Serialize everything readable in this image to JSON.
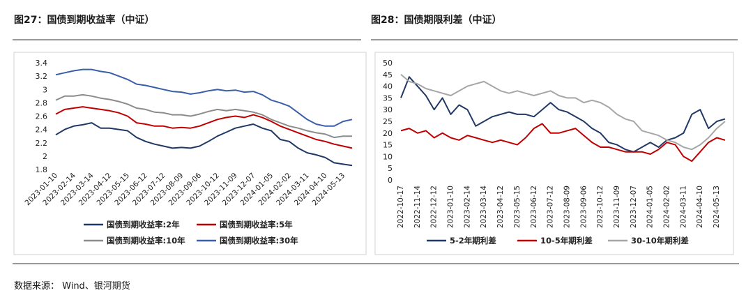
{
  "chart_data": [
    {
      "type": "line",
      "title": "图27：国债到期收益率（中证）",
      "categories": [
        "2023-01-10",
        null,
        "2023-02-14",
        null,
        "2023-03-14",
        null,
        "2023-04-12",
        null,
        "2023-05-15",
        null,
        "2023-06-12",
        null,
        "2023-07-12",
        null,
        "2023-08-09",
        null,
        "2023-09-06",
        null,
        "2023-10-12",
        null,
        "2023-11-09",
        null,
        "2023-12-07",
        null,
        "2024-01-05",
        null,
        "2024-02-02",
        null,
        "2024-03-11",
        null,
        "2024-04-10",
        null,
        "2024-05-13",
        null
      ],
      "series": [
        {
          "name": "国债到期收益率:2年",
          "color": "#1f3864",
          "values": [
            2.32,
            2.4,
            2.45,
            2.47,
            2.5,
            2.42,
            2.42,
            2.4,
            2.38,
            2.28,
            2.22,
            2.18,
            2.15,
            2.12,
            2.13,
            2.12,
            2.15,
            2.22,
            2.3,
            2.36,
            2.42,
            2.45,
            2.48,
            2.42,
            2.38,
            2.25,
            2.22,
            2.12,
            2.05,
            2.02,
            1.98,
            1.9,
            1.88,
            1.86
          ]
        },
        {
          "name": "国债到期收益率:5年",
          "color": "#c00000",
          "values": [
            2.63,
            2.7,
            2.72,
            2.74,
            2.72,
            2.7,
            2.68,
            2.65,
            2.6,
            2.5,
            2.48,
            2.45,
            2.45,
            2.42,
            2.43,
            2.42,
            2.45,
            2.5,
            2.55,
            2.58,
            2.6,
            2.58,
            2.62,
            2.58,
            2.52,
            2.45,
            2.4,
            2.35,
            2.3,
            2.25,
            2.22,
            2.18,
            2.15,
            2.12
          ]
        },
        {
          "name": "国债到期收益率:10年",
          "color": "#8c8c8c",
          "values": [
            2.84,
            2.9,
            2.9,
            2.92,
            2.9,
            2.87,
            2.85,
            2.82,
            2.78,
            2.72,
            2.7,
            2.66,
            2.65,
            2.62,
            2.62,
            2.6,
            2.63,
            2.67,
            2.7,
            2.68,
            2.7,
            2.68,
            2.66,
            2.62,
            2.55,
            2.5,
            2.45,
            2.42,
            2.38,
            2.35,
            2.33,
            2.28,
            2.3,
            2.3
          ]
        },
        {
          "name": "国债到期收益率:30年",
          "color": "#3a5ea8",
          "values": [
            3.22,
            3.25,
            3.28,
            3.3,
            3.3,
            3.27,
            3.25,
            3.2,
            3.15,
            3.08,
            3.06,
            3.03,
            3.0,
            2.97,
            2.96,
            2.93,
            2.95,
            2.98,
            3.0,
            2.98,
            2.99,
            2.96,
            2.97,
            2.92,
            2.84,
            2.8,
            2.75,
            2.65,
            2.55,
            2.48,
            2.45,
            2.45,
            2.52,
            2.55
          ]
        }
      ],
      "ylim": [
        1.8,
        3.4
      ],
      "yticks": [
        1.8,
        2,
        2.2,
        2.4,
        2.6,
        2.8,
        3,
        3.2,
        3.4
      ],
      "grid": false,
      "legend": "bottom"
    },
    {
      "type": "line",
      "title": "图28：国债期限利差（中证）",
      "categories": [
        "2022-10-17",
        null,
        "2022-11-14",
        null,
        "2022-12-12",
        null,
        "2023-01-10",
        null,
        "2023-02-14",
        null,
        "2023-03-14",
        null,
        "2023-04-12",
        null,
        "2023-05-15",
        null,
        "2023-06-12",
        null,
        "2023-07-12",
        null,
        "2023-08-09",
        null,
        "2023-09-06",
        null,
        "2023-10-12",
        null,
        "2023-11-09",
        null,
        "2023-12-07",
        null,
        "2024-01-05",
        null,
        "2024-02-02",
        null,
        "2024-03-11",
        null,
        "2024-04-10",
        null,
        "2024-05-13",
        null
      ],
      "series": [
        {
          "name": "5-2年期利差",
          "color": "#203864",
          "values": [
            35,
            44,
            40,
            36,
            30,
            35,
            28,
            32,
            30,
            23,
            25,
            27,
            28,
            29,
            28,
            28,
            27,
            30,
            33,
            30,
            29,
            27,
            25,
            22,
            20,
            16,
            15,
            13,
            12,
            14,
            16,
            14,
            17,
            18,
            20,
            28,
            30,
            22,
            25,
            26
          ]
        },
        {
          "name": "10-5年期利差",
          "color": "#c00000",
          "values": [
            21,
            22,
            20,
            21,
            18,
            20,
            18,
            17,
            19,
            18,
            17,
            16,
            17,
            16,
            15,
            18,
            22,
            24,
            20,
            20,
            21,
            22,
            19,
            16,
            14,
            14,
            13,
            12,
            12,
            12,
            11,
            13,
            16,
            15,
            10,
            8,
            12,
            16,
            18,
            17
          ]
        },
        {
          "name": "30-10年期利差",
          "color": "#a6a6a6",
          "values": [
            45,
            42,
            41,
            39,
            38,
            37,
            36,
            38,
            40,
            41,
            42,
            40,
            38,
            37,
            38,
            37,
            36,
            37,
            38,
            36,
            35,
            35,
            33,
            34,
            33,
            31,
            28,
            26,
            25,
            21,
            20,
            19,
            17,
            16,
            14,
            13,
            15,
            18,
            22,
            25
          ]
        }
      ],
      "ylim": [
        0,
        50
      ],
      "yticks": [
        0,
        5,
        10,
        15,
        20,
        25,
        30,
        35,
        40,
        45,
        50
      ],
      "grid": false,
      "legend": "bottom"
    }
  ],
  "footer": "数据来源： Wind、银河期货"
}
